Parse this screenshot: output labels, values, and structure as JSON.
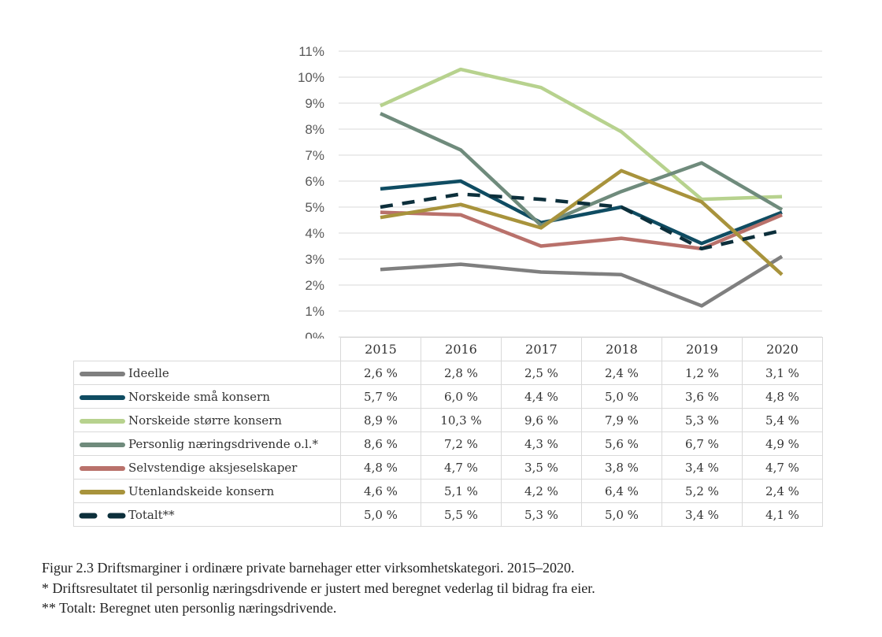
{
  "chart_data": {
    "type": "line",
    "categories": [
      "2015",
      "2016",
      "2017",
      "2018",
      "2019",
      "2020"
    ],
    "ylim": [
      0,
      11
    ],
    "yticks": [
      "0%",
      "1%",
      "2%",
      "3%",
      "4%",
      "5%",
      "6%",
      "7%",
      "8%",
      "9%",
      "10%",
      "11%"
    ],
    "grid": true,
    "legend": "table-below",
    "series": [
      {
        "name": "Ideelle",
        "color": "#7f7f7f",
        "dash": false,
        "values": [
          2.6,
          2.8,
          2.5,
          2.4,
          1.2,
          3.1
        ],
        "labels": [
          "2,6 %",
          "2,8 %",
          "2,5 %",
          "2,4 %",
          "1,2 %",
          "3,1 %"
        ]
      },
      {
        "name": "Norskeide små konsern",
        "color": "#0f4c62",
        "dash": false,
        "values": [
          5.7,
          6.0,
          4.4,
          5.0,
          3.6,
          4.8
        ],
        "labels": [
          "5,7 %",
          "6,0 %",
          "4,4 %",
          "5,0 %",
          "3,6 %",
          "4,8 %"
        ]
      },
      {
        "name": "Norskeide større konsern",
        "color": "#b7d28e",
        "dash": false,
        "values": [
          8.9,
          10.3,
          9.6,
          7.9,
          5.3,
          5.4
        ],
        "labels": [
          "8,9 %",
          "10,3 %",
          "9,6 %",
          "7,9 %",
          "5,3 %",
          "5,4 %"
        ]
      },
      {
        "name": "Personlig næringsdrivende o.l.*",
        "color": "#6f8b7c",
        "dash": false,
        "values": [
          8.6,
          7.2,
          4.3,
          5.6,
          6.7,
          4.9
        ],
        "labels": [
          "8,6 %",
          "7,2 %",
          "4,3 %",
          "5,6 %",
          "6,7 %",
          "4,9 %"
        ]
      },
      {
        "name": "Selvstendige aksjeselskaper",
        "color": "#b9716b",
        "dash": false,
        "values": [
          4.8,
          4.7,
          3.5,
          3.8,
          3.4,
          4.7
        ],
        "labels": [
          "4,8 %",
          "4,7 %",
          "3,5 %",
          "3,8 %",
          "3,4 %",
          "4,7 %"
        ]
      },
      {
        "name": "Utenlandskeide konsern",
        "color": "#a8933c",
        "dash": false,
        "values": [
          4.6,
          5.1,
          4.2,
          6.4,
          5.2,
          2.4
        ],
        "labels": [
          "4,6 %",
          "5,1 %",
          "4,2 %",
          "6,4 %",
          "5,2 %",
          "2,4 %"
        ]
      },
      {
        "name": "Totalt**",
        "color": "#0c2f3b",
        "dash": true,
        "values": [
          5.0,
          5.5,
          5.3,
          5.0,
          3.4,
          4.1
        ],
        "labels": [
          "5,0 %",
          "5,5 %",
          "5,3 %",
          "5,0 %",
          "3,4 %",
          "4,1 %"
        ]
      }
    ]
  },
  "caption": {
    "title": "Figur 2.3 Driftsmarginer i ordinære private barnehager etter virksomhetskategori. 2015–2020.",
    "note1": "* Driftsresultatet til personlig næringsdrivende er justert med beregnet vederlag til bidrag fra eier.",
    "note2": "** Totalt: Beregnet uten personlig næringsdrivende."
  }
}
